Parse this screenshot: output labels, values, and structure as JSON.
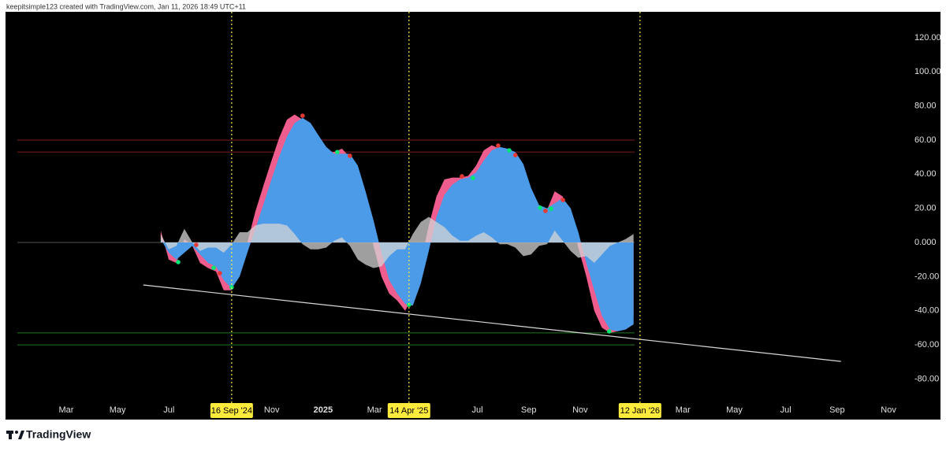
{
  "header": "keepitsimple123 created with TradingView.com, Jan 11, 2026 18:49 UTC+11",
  "brand": "TradingView",
  "chart_data": {
    "type": "area",
    "x": [
      6.68,
      6.99,
      7.29,
      7.6,
      7.91,
      8.21,
      8.52,
      8.83,
      9.13,
      9.44,
      9.75,
      10.05,
      10.36,
      10.67,
      10.97,
      11.28,
      11.59,
      11.89,
      12.2,
      12.51,
      12.81,
      13.12,
      13.43,
      13.73,
      14.04,
      14.35,
      14.65,
      14.96,
      15.27,
      15.57,
      15.88,
      16.19,
      16.49,
      16.8,
      17.11,
      17.41,
      17.72,
      18.03,
      18.33,
      18.64,
      18.95,
      19.25,
      19.56,
      19.87,
      20.17,
      20.48,
      20.79,
      21.09,
      21.4,
      21.71,
      22.01,
      22.32,
      22.63,
      22.93,
      23.24,
      23.55,
      23.85,
      24.16,
      24.47,
      24.77,
      25.08
    ],
    "series": [
      {
        "color": "#ef5d8e",
        "values": [
          7,
          -10,
          -12,
          2,
          -2,
          -12,
          -15,
          -17,
          -28,
          -28,
          -14,
          0,
          18,
          33,
          47,
          61,
          72,
          75,
          72,
          66,
          59,
          53,
          53,
          55,
          50,
          35,
          17,
          -2,
          -20,
          -30,
          -34,
          -40,
          -32,
          -12,
          10,
          27,
          37,
          38,
          38,
          39,
          45,
          54,
          57,
          55,
          54,
          50,
          38,
          25,
          20,
          19,
          30,
          27,
          15,
          -3,
          -20,
          -40,
          -50,
          -53,
          -52,
          -49,
          -43
        ]
      },
      {
        "color": "#4c9be8",
        "values": [
          2,
          -6,
          -10,
          -6,
          -2,
          -7,
          -12,
          -14,
          -22,
          -27,
          -20,
          -6,
          8,
          22,
          36,
          50,
          62,
          70,
          73,
          70,
          63,
          56,
          52,
          52,
          52,
          45,
          30,
          13,
          -6,
          -22,
          -30,
          -36,
          -37,
          -24,
          -5,
          15,
          28,
          34,
          37,
          38,
          41,
          48,
          54,
          56,
          55,
          53,
          46,
          32,
          22,
          20,
          23,
          26,
          20,
          6,
          -12,
          -28,
          -43,
          -51,
          -52,
          -51,
          -48
        ]
      },
      {
        "color": "#d4d4d4",
        "values": [
          5,
          -4,
          -2,
          8,
          0,
          -5,
          -3,
          -3,
          -6,
          -1,
          6,
          6,
          10,
          11,
          11,
          11,
          10,
          5,
          -1,
          -4,
          -4,
          -3,
          1,
          3,
          -2,
          -10,
          -13,
          -15,
          -14,
          -8,
          -4,
          -4,
          5,
          12,
          15,
          12,
          9,
          4,
          1,
          1,
          4,
          6,
          3,
          -1,
          -1,
          -3,
          -8,
          -7,
          -2,
          -1,
          7,
          1,
          -5,
          -9,
          -8,
          -12,
          -7,
          -2,
          0,
          2,
          5
        ]
      }
    ],
    "markers": [
      {
        "color": "#e53935",
        "x": [
          8.06,
          8.98,
          12.2,
          14.04,
          18.4,
          19.81,
          20.48,
          21.65,
          22.33
        ],
        "values": [
          -1.4,
          -18,
          74.3,
          50.8,
          38.8,
          56.8,
          51.2,
          18.5,
          24.9
        ]
      },
      {
        "color": "#00e676",
        "x": [
          7.36,
          8.74,
          9.44,
          13.55,
          16.34,
          18.83,
          20.24,
          21.44,
          21.87,
          24.13
        ],
        "values": [
          -11.5,
          -14.8,
          -26.3,
          53,
          -36.5,
          37.8,
          54,
          20.3,
          19.8,
          -52.1
        ]
      }
    ],
    "levels": [
      {
        "value": 60,
        "color": "#7a1c1c",
        "x": [
          1.1,
          25.12
        ]
      },
      {
        "value": 53,
        "color": "#7a1c1c",
        "x": [
          1.1,
          25.12
        ]
      },
      {
        "value": 0,
        "color": "#555555",
        "x": [
          1.1,
          25.12
        ]
      },
      {
        "value": -53,
        "color": "#1f7a1f",
        "x": [
          1.1,
          25.12
        ]
      },
      {
        "value": -60,
        "color": "#1f7a1f",
        "x": [
          1.1,
          25.12
        ]
      }
    ],
    "trendline": {
      "color": "#d8d8d8",
      "x": [
        6.0,
        33.15
      ],
      "values": [
        -24.9,
        -69.7
      ]
    },
    "events": [
      {
        "x": 9.44,
        "label": "16 Sep '24"
      },
      {
        "x": 16.34,
        "label": "14 Apr '25"
      },
      {
        "x": 25.33,
        "label": "12 Jan '26"
      }
    ],
    "xlim": [
      0.64,
      35.55
    ],
    "ylim": [
      -103.8,
      135.2
    ],
    "xticks": [
      {
        "value": 3,
        "label": "Mar"
      },
      {
        "value": 5,
        "label": "May"
      },
      {
        "value": 7,
        "label": "Jul"
      },
      {
        "value": 11,
        "label": "Nov"
      },
      {
        "value": 13,
        "label": "2025"
      },
      {
        "value": 15,
        "label": "Mar"
      },
      {
        "value": 19,
        "label": "Jul"
      },
      {
        "value": 21,
        "label": "Sep"
      },
      {
        "value": 23,
        "label": "Nov"
      },
      {
        "value": 27,
        "label": "Mar"
      },
      {
        "value": 29,
        "label": "May"
      },
      {
        "value": 31,
        "label": "Jul"
      },
      {
        "value": 33,
        "label": "Sep"
      },
      {
        "value": 35,
        "label": "Nov"
      }
    ],
    "yticks": [
      {
        "value": 120,
        "label": "120.00"
      },
      {
        "value": 100,
        "label": "100.00"
      },
      {
        "value": 80,
        "label": "80.00"
      },
      {
        "value": 60,
        "label": "60.00"
      },
      {
        "value": 40,
        "label": "40.00"
      },
      {
        "value": 20,
        "label": "20.00"
      },
      {
        "value": 0,
        "label": "0.000"
      },
      {
        "value": -20,
        "label": "-20.00"
      },
      {
        "value": -40,
        "label": "-40.00"
      },
      {
        "value": -60,
        "label": "-60.00"
      },
      {
        "value": -80,
        "label": "-80.00"
      }
    ]
  }
}
